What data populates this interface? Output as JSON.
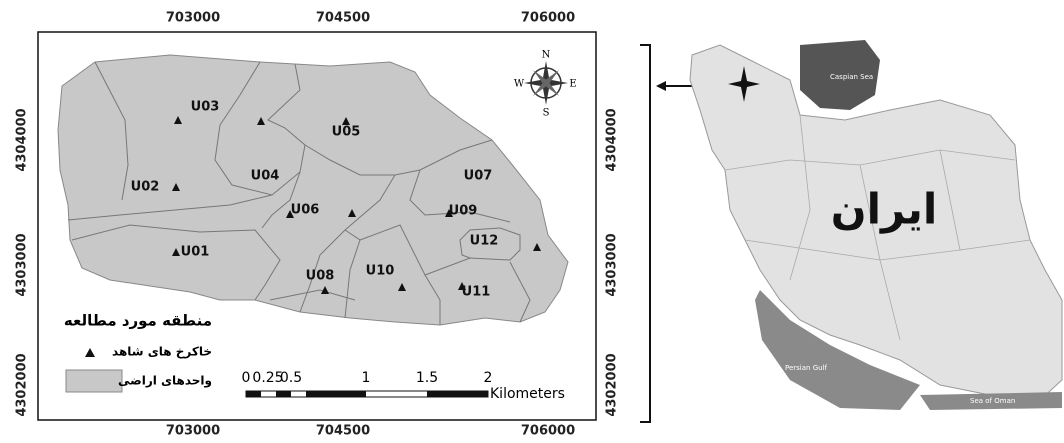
{
  "map": {
    "top_axis": [
      "703000",
      "704500",
      "706000"
    ],
    "bottom_axis": [
      "703000",
      "704500",
      "706000"
    ],
    "left_axis": [
      "4304000",
      "4303000",
      "4302000"
    ],
    "right_axis": [
      "4304000",
      "4303000",
      "4302000"
    ],
    "units": [
      "U01",
      "U02",
      "U03",
      "U04",
      "U05",
      "U06",
      "U07",
      "U08",
      "U09",
      "U10",
      "U11",
      "U12"
    ],
    "compass": {
      "n": "N",
      "s": "S",
      "e": "E",
      "w": "W"
    },
    "legend": {
      "title": "منطقه مورد مطالعه",
      "points": "خاکرخ های شاهد",
      "areas": "واحدهای اراضی"
    },
    "scale": {
      "labels": [
        "0",
        "0.25",
        "0.5",
        "1",
        "1.5",
        "2"
      ],
      "unit": "Kilometers"
    }
  },
  "inset": {
    "title": "ایران",
    "caspian": "Caspian Sea",
    "gulf": "Persian Gulf",
    "oman": "Sea of Oman"
  }
}
